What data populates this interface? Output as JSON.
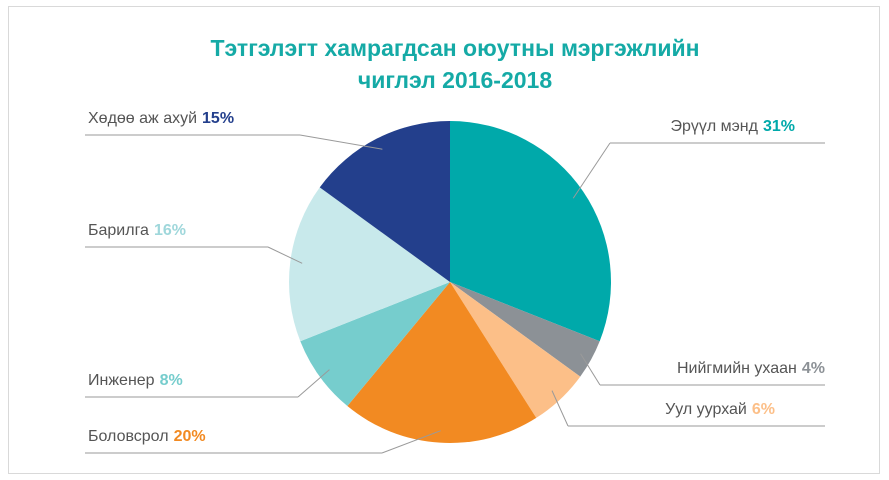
{
  "chart_data": {
    "type": "pie",
    "title": "Тэтгэлэгт хамрагдсан оюутны мэргэжлийн чиглэл 2016-2018",
    "categories": [
      "Эрүүл мэнд",
      "Нийгмийн ухаан",
      "Уул уурхай",
      "Боловсрол",
      "Инженер",
      "Барилга",
      "Хөдөө аж ахуй"
    ],
    "values": [
      31,
      4,
      6,
      20,
      8,
      16,
      15
    ],
    "value_labels": [
      "31%",
      "4%",
      "6%",
      "20%",
      "8%",
      "16%",
      "15%"
    ],
    "colors": [
      "#00a9aa",
      "#8c9196",
      "#fcbf88",
      "#f28a22",
      "#76cdcd",
      "#c8e9eb",
      "#233f8c"
    ]
  }
}
